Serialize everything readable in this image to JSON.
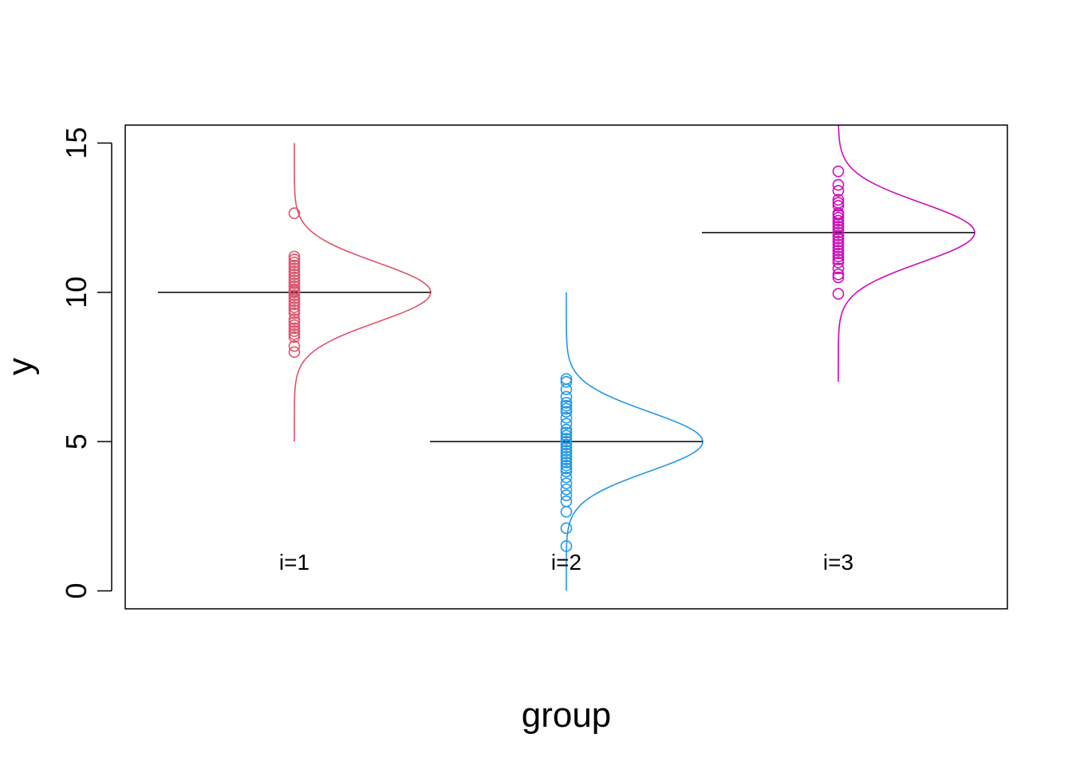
{
  "chart_data": {
    "type": "scatter",
    "title": "",
    "xlabel": "group",
    "ylabel": "y",
    "ylim": [
      -0.6,
      15.6
    ],
    "yticks": [
      0,
      5,
      10,
      15
    ],
    "grid": false,
    "legend": "none",
    "groups": [
      {
        "label": "i=1",
        "mean": 10,
        "color": "#DF536B",
        "density_range": [
          5,
          15
        ],
        "points": [
          8.0,
          8.2,
          8.5,
          8.6,
          8.7,
          8.8,
          8.9,
          9.0,
          9.1,
          9.3,
          9.4,
          9.5,
          9.6,
          9.7,
          9.8,
          9.9,
          10.0,
          10.05,
          10.1,
          10.2,
          10.3,
          10.4,
          10.5,
          10.6,
          10.7,
          10.8,
          10.9,
          11.0,
          11.1,
          11.2,
          12.65
        ]
      },
      {
        "label": "i=2",
        "mean": 5,
        "color": "#2297E6",
        "density_range": [
          0,
          10
        ],
        "points": [
          1.5,
          2.1,
          2.65,
          3.0,
          3.2,
          3.4,
          3.6,
          3.8,
          4.0,
          4.1,
          4.2,
          4.3,
          4.4,
          4.5,
          4.6,
          4.7,
          4.8,
          4.9,
          5.0,
          5.1,
          5.2,
          5.3,
          5.4,
          5.6,
          5.8,
          6.0,
          6.1,
          6.2,
          6.3,
          6.5,
          6.75,
          7.0,
          7.1
        ]
      },
      {
        "label": "i=3",
        "mean": 12,
        "color": "#CD0BBC",
        "density_range": [
          7,
          17
        ],
        "points": [
          9.95,
          10.5,
          10.6,
          10.8,
          11.0,
          11.1,
          11.2,
          11.3,
          11.4,
          11.5,
          11.6,
          11.7,
          11.8,
          11.9,
          12.0,
          12.1,
          12.2,
          12.3,
          12.4,
          12.5,
          12.6,
          12.65,
          12.9,
          13.0,
          13.1,
          13.4,
          13.6,
          14.05
        ]
      }
    ]
  }
}
